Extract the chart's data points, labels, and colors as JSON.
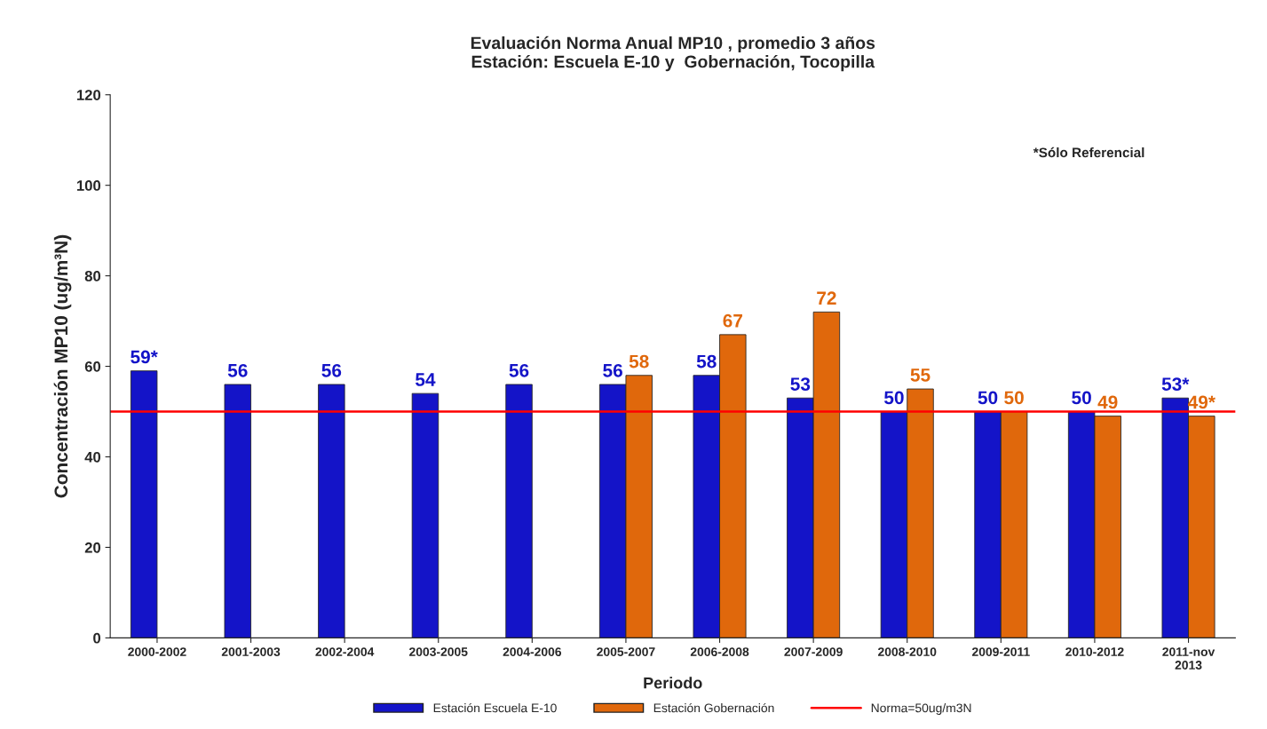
{
  "chart_data": {
    "type": "bar",
    "title": "Evaluación Norma Anual MP10 , promedio 3 años\nEstación: Escuela E-10 y  Gobernación, Tocopilla",
    "xlabel": "Periodo",
    "ylabel": "Concentración MP10 (ug/m³N)",
    "categories": [
      "2000-2002",
      "2001-2003",
      "2002-2004",
      "2003-2005",
      "2004-2006",
      "2005-2007",
      "2006-2008",
      "2007-2009",
      "2008-2010",
      "2009-2011",
      "2010-2012",
      "2011-nov\n2013"
    ],
    "series": [
      {
        "name": "Estación Escuela E-10",
        "color": "#1414c8",
        "values": [
          59,
          56,
          56,
          54,
          56,
          56,
          58,
          53,
          50,
          50,
          50,
          53
        ],
        "value_labels": [
          "59*",
          "56",
          "56",
          "54",
          "56",
          "56",
          "58",
          "53",
          "50",
          "50",
          "50",
          "53*"
        ]
      },
      {
        "name": "Estación Gobernación",
        "color": "#e0680c",
        "values": [
          null,
          null,
          null,
          null,
          null,
          58,
          67,
          72,
          55,
          50,
          49,
          49
        ],
        "value_labels": [
          null,
          null,
          null,
          null,
          null,
          "58",
          "67",
          "72",
          "55",
          "50",
          "49",
          "49*"
        ]
      }
    ],
    "ref_lines": [
      {
        "axis": "y",
        "value": 50,
        "label": "Norma=50ug/m3N",
        "color": "#ff0000"
      }
    ],
    "annotations": [
      "*Sólo Referencial"
    ],
    "ylim": [
      0,
      120
    ],
    "yticks": [
      0,
      20,
      40,
      60,
      80,
      100,
      120
    ],
    "grid": false,
    "legend": "bottom"
  }
}
